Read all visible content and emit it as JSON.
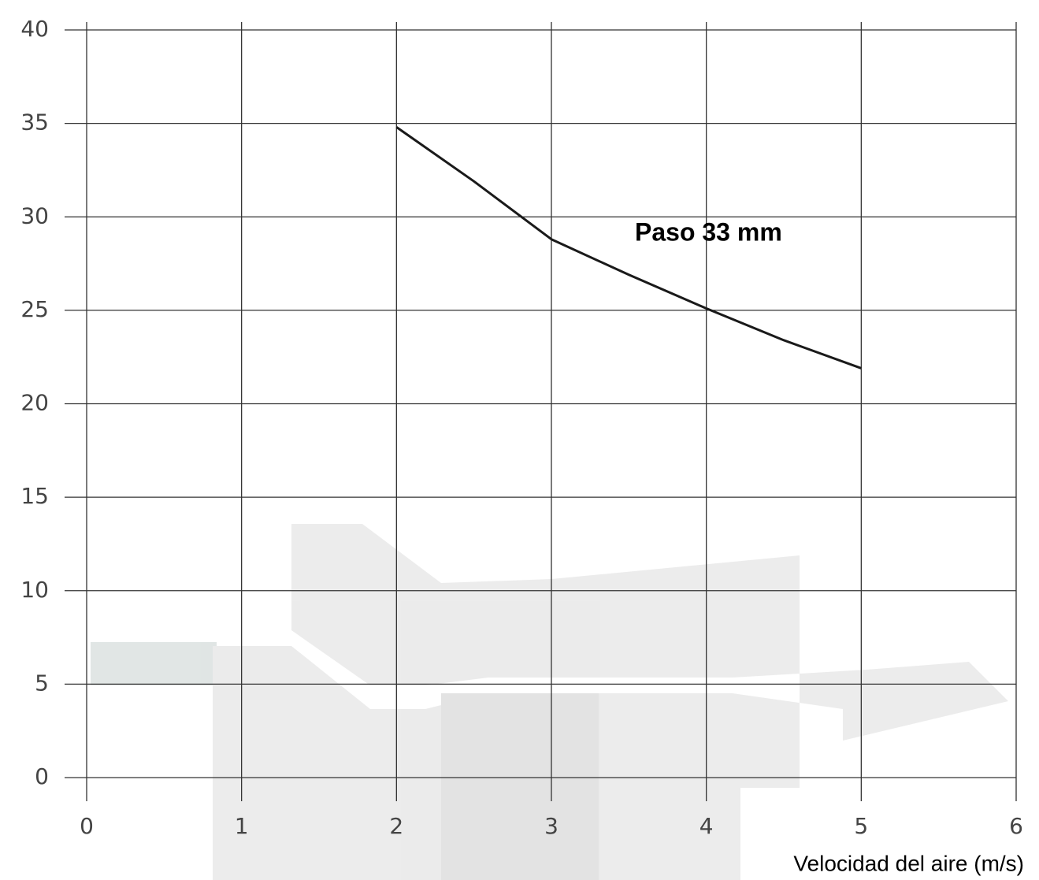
{
  "chart_data": {
    "type": "line",
    "annotation": "Paso 33 mm",
    "xlabel": "Velocidad del aire (m/s)",
    "x": [
      2,
      2.5,
      3,
      3.5,
      4,
      4.5,
      5
    ],
    "values": [
      34.8,
      31.9,
      28.8,
      26.9,
      25.1,
      23.4,
      21.9
    ],
    "color": "#1a1a1a",
    "xlim": [
      0,
      6
    ],
    "xticks": [
      0,
      1,
      2,
      3,
      4,
      5,
      6
    ],
    "ylim": [
      0,
      40
    ],
    "yticks": [
      0,
      5,
      10,
      15,
      20,
      25,
      30,
      35,
      40
    ],
    "grid": true
  }
}
